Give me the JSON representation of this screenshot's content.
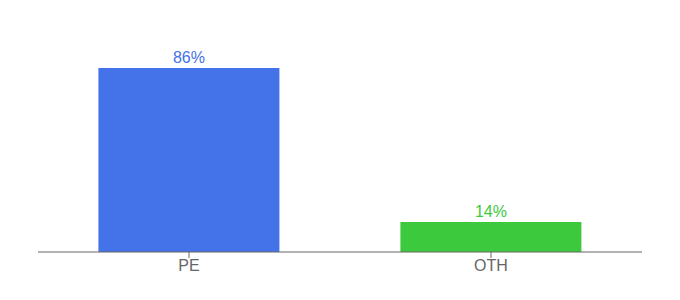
{
  "chart_data": {
    "type": "bar",
    "categories": [
      "PE",
      "OTH"
    ],
    "values": [
      86,
      14
    ],
    "value_labels": [
      "86%",
      "14%"
    ],
    "colors": [
      "#4472e8",
      "#3dc93d"
    ],
    "ylim": [
      0,
      100
    ],
    "tick_labels": "x"
  }
}
